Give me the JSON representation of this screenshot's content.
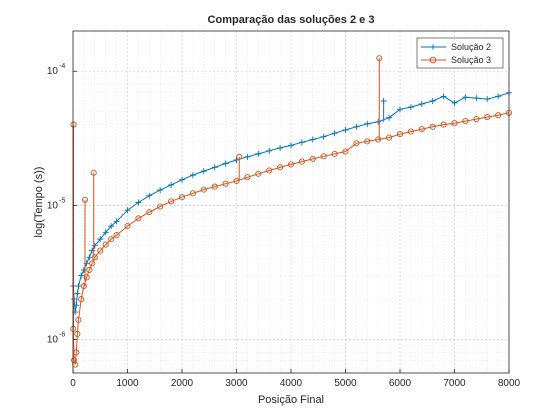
{
  "chart_data": {
    "type": "line",
    "title": "Comparação das soluções 2 e 3",
    "xlabel": "Posição Final",
    "ylabel": "log(Tempo (s))",
    "xlim": [
      0,
      8000
    ],
    "ylim_log10": [
      -6.25,
      -3.7
    ],
    "y_scale": "log",
    "grid": true,
    "minor_grid": true,
    "legend_position": "top-right",
    "x_ticks": [
      0,
      1000,
      2000,
      3000,
      4000,
      5000,
      6000,
      7000,
      8000
    ],
    "x_tick_labels": [
      "0",
      "1000",
      "2000",
      "3000",
      "4000",
      "5000",
      "6000",
      "7000",
      "8000"
    ],
    "y_ticks": [
      1e-06,
      1e-05,
      0.0001
    ],
    "y_tick_labels": [
      {
        "base": "10",
        "exp": "-6"
      },
      {
        "base": "10",
        "exp": "-5"
      },
      {
        "base": "10",
        "exp": "-4"
      }
    ],
    "series": [
      {
        "name": "Solução 2",
        "color": "#0072BD",
        "marker": "plus",
        "x": [
          5,
          20,
          40,
          60,
          80,
          100,
          150,
          200,
          250,
          300,
          350,
          400,
          500,
          600,
          700,
          800,
          1000,
          1200,
          1400,
          1600,
          1800,
          2000,
          2200,
          2400,
          2600,
          2800,
          3000,
          3200,
          3400,
          3600,
          3800,
          4000,
          4200,
          4400,
          4600,
          4800,
          5000,
          5200,
          5400,
          5600,
          5800,
          6000,
          6200,
          6400,
          6600,
          6800,
          7000,
          7200,
          7400,
          7600,
          7800,
          8000
        ],
        "y": [
          2.5e-06,
          2e-06,
          1.6e-06,
          1.8e-06,
          2.2e-06,
          2.5e-06,
          3e-06,
          3.3e-06,
          3.7e-06,
          4.1e-06,
          4.6e-06,
          5e-06,
          5.6e-06,
          6.3e-06,
          7e-06,
          7.6e-06,
          9.2e-06,
          1.05e-05,
          1.18e-05,
          1.3e-05,
          1.42e-05,
          1.55e-05,
          1.68e-05,
          1.8e-05,
          1.92e-05,
          2.05e-05,
          2.18e-05,
          2.3e-05,
          2.42e-05,
          2.55e-05,
          2.68e-05,
          2.8e-05,
          2.95e-05,
          3.1e-05,
          3.25e-05,
          3.45e-05,
          3.65e-05,
          3.85e-05,
          4.05e-05,
          4.2e-05,
          4.5e-05,
          5.2e-05,
          5.4e-05,
          5.7e-05,
          6e-05,
          6.5e-05,
          5.8e-05,
          6.4e-05,
          6.3e-05,
          6.2e-05,
          6.5e-05,
          6.9e-05
        ]
      },
      {
        "name": "Solução 3",
        "color": "#D95319",
        "marker": "circle",
        "x": [
          5,
          20,
          40,
          60,
          80,
          100,
          150,
          200,
          250,
          300,
          350,
          400,
          500,
          600,
          700,
          800,
          1000,
          1200,
          1400,
          1600,
          1800,
          2000,
          2200,
          2400,
          2600,
          2800,
          3000,
          3200,
          3400,
          3600,
          3800,
          4000,
          4200,
          4400,
          4600,
          4800,
          5000,
          5200,
          5400,
          5600,
          5800,
          6000,
          6200,
          6400,
          6600,
          6800,
          7000,
          7200,
          7400,
          7600,
          7800,
          8000
        ],
        "y": [
          1.2e-06,
          7e-07,
          6.5e-07,
          8e-07,
          1.1e-06,
          1.4e-06,
          2e-06,
          2.5e-06,
          2.9e-06,
          3.3e-06,
          3.7e-06,
          4.1e-06,
          4.6e-06,
          5.1e-06,
          5.6e-06,
          6e-06,
          7e-06,
          8e-06,
          8.9e-06,
          9.8e-06,
          1.07e-05,
          1.15e-05,
          1.23e-05,
          1.31e-05,
          1.38e-05,
          1.45e-05,
          1.52e-05,
          1.62e-05,
          1.72e-05,
          1.82e-05,
          1.92e-05,
          2.02e-05,
          2.12e-05,
          2.22e-05,
          2.32e-05,
          2.42e-05,
          2.52e-05,
          2.9e-05,
          3e-05,
          3.1e-05,
          3.2e-05,
          3.4e-05,
          3.55e-05,
          3.7e-05,
          3.85e-05,
          4e-05,
          4.1e-05,
          4.25e-05,
          4.4e-05,
          4.55e-05,
          4.7e-05,
          4.9e-05
        ]
      }
    ],
    "spikes": [
      {
        "series": "Solução 3",
        "x": 10,
        "y": 4e-05
      },
      {
        "series": "Solução 3",
        "x": 220,
        "y": 1.1e-05
      },
      {
        "series": "Solução 3",
        "x": 380,
        "y": 1.75e-05
      },
      {
        "series": "Solução 3",
        "x": 5620,
        "y": 0.000125
      },
      {
        "series": "Solução 3",
        "x": 3050,
        "y": 2.3e-05
      },
      {
        "series": "Solução 2",
        "x": 5700,
        "y": 6e-05
      }
    ]
  }
}
